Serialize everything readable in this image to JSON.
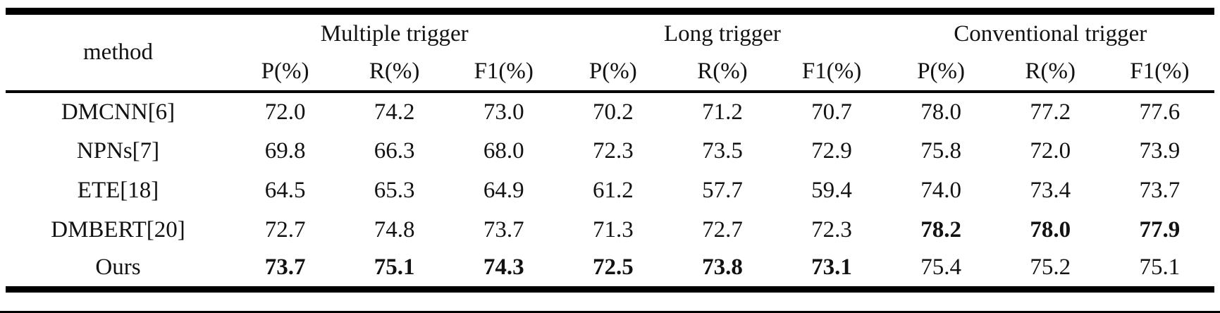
{
  "colors": {
    "background": "#ffffff",
    "text": "#121212",
    "rule": "#000000"
  },
  "table": {
    "header": {
      "method_label": "method",
      "groups": [
        {
          "label": "Multiple trigger",
          "metrics": [
            "P(%)",
            "R(%)",
            "F1(%)"
          ]
        },
        {
          "label": "Long trigger",
          "metrics": [
            "P(%)",
            "R(%)",
            "F1(%)"
          ]
        },
        {
          "label": "Conventional trigger",
          "metrics": [
            "P(%)",
            "R(%)",
            "F1(%)"
          ]
        }
      ]
    },
    "rows": [
      {
        "method": "DMCNN[6]",
        "values": [
          "72.0",
          "74.2",
          "73.0",
          "70.2",
          "71.2",
          "70.7",
          "78.0",
          "77.2",
          "77.6"
        ],
        "bold": [
          false,
          false,
          false,
          false,
          false,
          false,
          false,
          false,
          false
        ]
      },
      {
        "method": "NPNs[7]",
        "values": [
          "69.8",
          "66.3",
          "68.0",
          "72.3",
          "73.5",
          "72.9",
          "75.8",
          "72.0",
          "73.9"
        ],
        "bold": [
          false,
          false,
          false,
          false,
          false,
          false,
          false,
          false,
          false
        ]
      },
      {
        "method": "ETE[18]",
        "values": [
          "64.5",
          "65.3",
          "64.9",
          "61.2",
          "57.7",
          "59.4",
          "74.0",
          "73.4",
          "73.7"
        ],
        "bold": [
          false,
          false,
          false,
          false,
          false,
          false,
          false,
          false,
          false
        ]
      },
      {
        "method": "DMBERT[20]",
        "values": [
          "72.7",
          "74.8",
          "73.7",
          "71.3",
          "72.7",
          "72.3",
          "78.2",
          "78.0",
          "77.9"
        ],
        "bold": [
          false,
          false,
          false,
          false,
          false,
          false,
          true,
          true,
          true
        ]
      },
      {
        "method": "Ours",
        "values": [
          "73.7",
          "75.1",
          "74.3",
          "72.5",
          "73.8",
          "73.1",
          "75.4",
          "75.2",
          "75.1"
        ],
        "bold": [
          true,
          true,
          true,
          true,
          true,
          true,
          false,
          false,
          false
        ]
      }
    ]
  }
}
